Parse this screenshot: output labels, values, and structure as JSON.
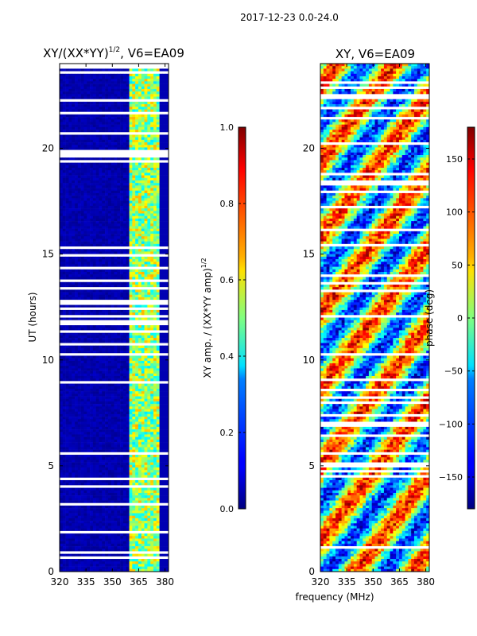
{
  "figure_title": "2017-12-23 0.0-24.0",
  "chart_data": [
    {
      "type": "heatmap",
      "title": "XY/(XX*YY)^1/2, V6=EA09",
      "title_main": "XY/(XX*YY)",
      "title_exp": "1/2",
      "title_suffix": ", V6=EA09",
      "xlabel": "",
      "ylabel": "UT (hours)",
      "xlim": [
        320,
        382
      ],
      "ylim": [
        0,
        24
      ],
      "xticks": [
        320,
        335,
        350,
        365,
        380
      ],
      "yticks": [
        0,
        5,
        10,
        15,
        20
      ],
      "colorbar": {
        "label": "XY amp. / (XX*YY amp)^1/2",
        "label_main": "XY amp. / (XX*YY amp)",
        "label_exp": "1/2",
        "range": [
          0.0,
          1.0
        ],
        "ticks": [
          "0.0",
          "0.2",
          "0.4",
          "0.6",
          "0.8",
          "1.0"
        ],
        "tick_values": [
          0.0,
          0.2,
          0.4,
          0.6,
          0.8,
          1.0
        ],
        "colormap": "jet"
      }
    },
    {
      "type": "heatmap",
      "title": "XY, V6=EA09",
      "xlabel": "frequency (MHz)",
      "ylabel": "",
      "xlim": [
        320,
        382
      ],
      "ylim": [
        0,
        24
      ],
      "xticks": [
        320,
        335,
        350,
        365,
        380
      ],
      "yticks": [
        0,
        5,
        10,
        15,
        20
      ],
      "colorbar": {
        "label": "phase (deg)",
        "range": [
          -180,
          180
        ],
        "ticks": [
          "−150",
          "−100",
          "−50",
          "0",
          "50",
          "100",
          "150"
        ],
        "tick_values": [
          -150,
          -100,
          -50,
          0,
          50,
          100,
          150
        ],
        "colormap": "jet"
      }
    }
  ],
  "colors": {
    "background": "#ffffff",
    "axis": "#000000",
    "colormap_low": "#00007f",
    "colormap_high": "#7f0000"
  }
}
